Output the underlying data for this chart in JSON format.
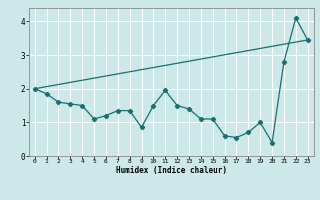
{
  "background_color": "#cce8e8",
  "grid_color": "#ffffff",
  "line_color": "#1a7070",
  "xlabel": "Humidex (Indice chaleur)",
  "xlim": [
    0,
    23
  ],
  "ylim": [
    0,
    4.4
  ],
  "yticks": [
    0,
    1,
    2,
    3,
    4
  ],
  "xticks": [
    0,
    1,
    2,
    3,
    4,
    5,
    6,
    7,
    8,
    9,
    10,
    11,
    12,
    13,
    14,
    15,
    16,
    17,
    18,
    19,
    20,
    21,
    22,
    23
  ],
  "series_main": {
    "x": [
      0,
      1,
      2,
      3,
      4,
      5,
      6,
      7,
      8,
      9,
      10,
      11,
      12,
      13,
      14,
      15,
      16,
      17,
      18,
      19,
      20,
      21,
      22,
      23
    ],
    "y": [
      2.0,
      1.85,
      1.6,
      1.55,
      1.5,
      1.1,
      1.2,
      1.35,
      1.35,
      0.85,
      1.5,
      1.95,
      1.5,
      1.4,
      1.1,
      1.1,
      0.6,
      0.55,
      0.7,
      1.0,
      0.4,
      2.8,
      4.1,
      3.45
    ]
  },
  "series_trend": {
    "x": [
      0,
      23
    ],
    "y": [
      2.0,
      3.45
    ]
  }
}
